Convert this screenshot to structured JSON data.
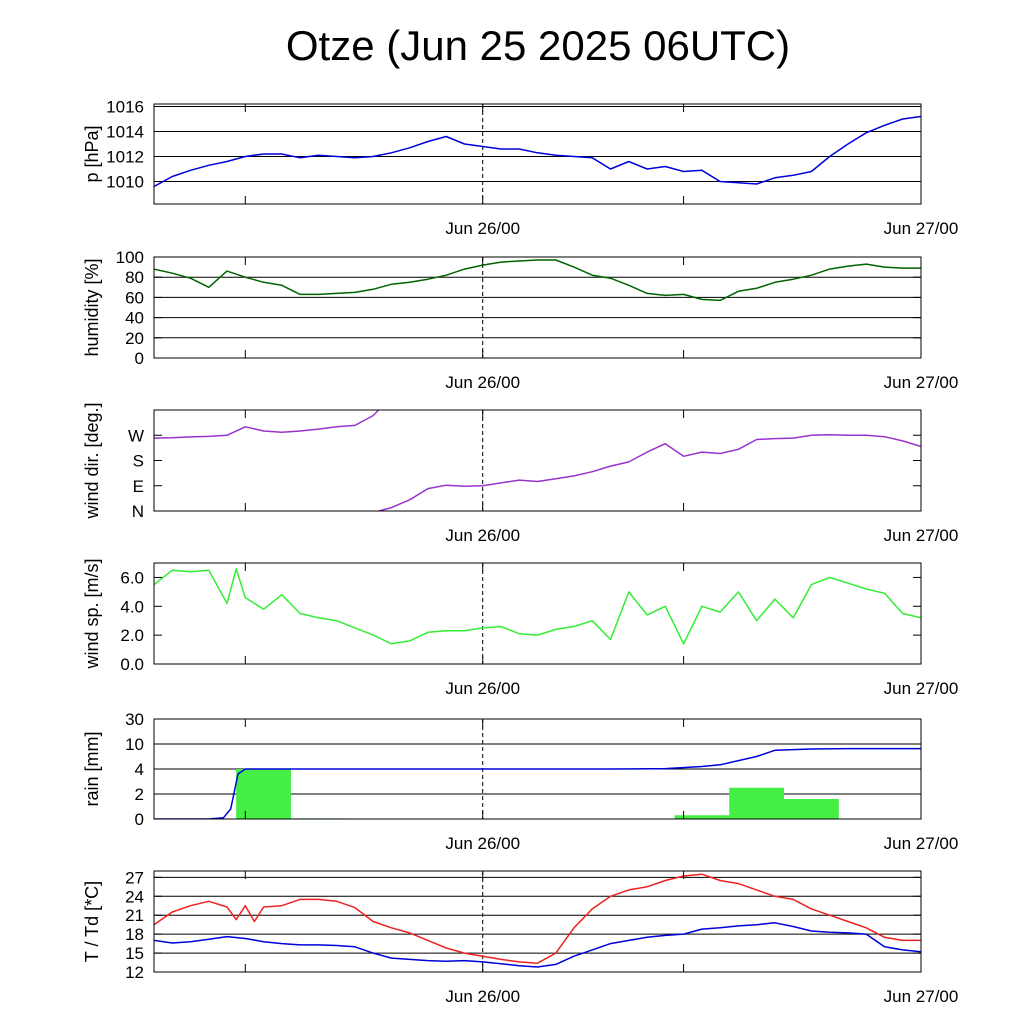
{
  "title": "Otze (Jun 25 2025 06UTC)",
  "time_axis": {
    "start": "Jun 25 06:00",
    "end": "Jun 27 00:00",
    "tick_labels": [
      "Jun 26/00",
      "Jun 27/00"
    ],
    "marked_line": "Jun 26/00"
  },
  "chart_data": [
    {
      "type": "line",
      "ylabel": "p [hPa]",
      "ylim": [
        1008.2,
        1016.2
      ],
      "yticks": [
        1010,
        1012,
        1014,
        1016
      ],
      "grid": true,
      "series": [
        {
          "color": "#0000dd",
          "x": [
            0,
            1,
            2,
            3,
            4,
            5,
            6,
            7,
            8,
            9,
            10,
            11,
            12,
            13,
            14,
            15,
            16,
            17,
            18,
            19,
            20,
            21,
            22,
            23,
            24,
            25,
            26,
            27,
            28,
            29,
            30,
            31,
            32,
            33,
            34,
            35,
            36,
            37,
            38,
            39,
            40,
            41,
            42
          ],
          "y": [
            1009.6,
            1010.4,
            1010.9,
            1011.3,
            1011.6,
            1012.0,
            1012.2,
            1012.2,
            1011.9,
            1012.1,
            1012.0,
            1011.9,
            1012.0,
            1012.3,
            1012.7,
            1013.2,
            1013.6,
            1013.0,
            1012.8,
            1012.6,
            1012.6,
            1012.3,
            1012.1,
            1012.0,
            1011.9,
            1011.0,
            1011.6,
            1011.0,
            1011.2,
            1010.8,
            1010.9,
            1010.0,
            1009.9,
            1009.8,
            1010.3,
            1010.5,
            1010.8,
            1012.0,
            1013.0,
            1013.9,
            1014.5,
            1015.0,
            1015.2
          ]
        }
      ]
    },
    {
      "type": "line",
      "ylabel": "humidity [%]",
      "ylim": [
        0,
        100
      ],
      "yticks": [
        0,
        20,
        40,
        60,
        80,
        100
      ],
      "grid": true,
      "series": [
        {
          "color": "#006400",
          "x": [
            0,
            1,
            2,
            3,
            4,
            5,
            6,
            7,
            8,
            9,
            10,
            11,
            12,
            13,
            14,
            15,
            16,
            17,
            18,
            19,
            20,
            21,
            22,
            23,
            24,
            25,
            26,
            27,
            28,
            29,
            30,
            31,
            32,
            33,
            34,
            35,
            36,
            37,
            38,
            39,
            40,
            41,
            42
          ],
          "y": [
            88,
            84,
            79,
            70,
            86,
            80,
            75,
            72,
            63,
            63,
            64,
            65,
            68,
            73,
            75,
            78,
            82,
            88,
            92,
            95,
            96,
            97,
            97,
            90,
            82,
            79,
            72,
            64,
            62,
            63,
            58,
            57,
            66,
            69,
            75,
            78,
            82,
            88,
            91,
            93,
            90,
            89,
            89
          ]
        }
      ]
    },
    {
      "type": "line",
      "ylabel": "wind dir. [deg.]",
      "ylim": [
        0,
        360
      ],
      "yticks": [
        0,
        90,
        180,
        270
      ],
      "yticklabels": [
        "N",
        "E",
        "S",
        "W"
      ],
      "grid": false,
      "series": [
        {
          "color": "#9933cc",
          "x": [
            0,
            1,
            2,
            3,
            4,
            5,
            6,
            7,
            8,
            9,
            10,
            11,
            12,
            12.3
          ],
          "y": [
            260,
            261,
            264,
            266,
            270,
            300,
            285,
            281,
            285,
            292,
            300,
            305,
            340,
            360
          ]
        },
        {
          "color": "#9933cc",
          "x": [
            12.3,
            13,
            14,
            15,
            16,
            17,
            18,
            19,
            20,
            21,
            22,
            23,
            24,
            25,
            26,
            27,
            28,
            29,
            30,
            31,
            32,
            33,
            34,
            35,
            36,
            37,
            38,
            39,
            40,
            41,
            42
          ],
          "y": [
            0,
            12,
            40,
            80,
            92,
            88,
            90,
            100,
            110,
            105,
            115,
            125,
            140,
            160,
            175,
            210,
            240,
            195,
            210,
            205,
            220,
            255,
            258,
            260,
            270,
            272,
            270,
            270,
            265,
            250,
            230
          ]
        }
      ]
    },
    {
      "type": "line",
      "ylabel": "wind sp. [m/s]",
      "ylim": [
        0,
        7
      ],
      "yticks": [
        0,
        2,
        4,
        6
      ],
      "yticklabels": [
        "0.0",
        "2.0",
        "4.0",
        "6.0"
      ],
      "grid": false,
      "series": [
        {
          "color": "#33ee33",
          "x": [
            0,
            1,
            2,
            3,
            4,
            4.5,
            5,
            6,
            7,
            8,
            9,
            10,
            11,
            12,
            13,
            14,
            15,
            16,
            17,
            18,
            19,
            20,
            21,
            22,
            23,
            24,
            25,
            26,
            27,
            28,
            29,
            30,
            31,
            32,
            33,
            34,
            35,
            36,
            37,
            38,
            39,
            40,
            41,
            42
          ],
          "y": [
            5.5,
            6.5,
            6.4,
            6.5,
            4.2,
            6.6,
            4.6,
            3.8,
            4.8,
            3.5,
            3.2,
            3.0,
            2.5,
            2.0,
            1.4,
            1.6,
            2.2,
            2.3,
            2.3,
            2.5,
            2.6,
            2.1,
            2.0,
            2.4,
            2.6,
            3.0,
            1.7,
            5.0,
            3.4,
            4.0,
            1.4,
            4.0,
            3.6,
            5.0,
            3.0,
            4.5,
            3.2,
            5.5,
            6.0,
            5.6,
            5.2,
            4.9,
            3.5,
            3.2
          ]
        }
      ]
    },
    {
      "type": "bar",
      "ylabel": "rain [mm]",
      "ylim": [
        0,
        30
      ],
      "yticks": [
        0,
        2,
        4,
        10,
        30
      ],
      "grid": true,
      "bars": {
        "color": "#44ee44",
        "x_start": [
          4.5,
          7.5,
          28.5,
          31.5,
          34.5
        ],
        "x_end": [
          7.5,
          10.5,
          31.5,
          34.5,
          37.5
        ],
        "values": [
          4.0,
          0.05,
          0.3,
          2.5,
          1.6
        ]
      },
      "series": [
        {
          "color": "#0000dd",
          "x": [
            0,
            3,
            3.8,
            4.2,
            4.6,
            5,
            10,
            20,
            25,
            28,
            30,
            31,
            33,
            34,
            36,
            38,
            42
          ],
          "y": [
            0,
            0,
            0.1,
            0.8,
            3.6,
            4.0,
            4.0,
            4.0,
            4.0,
            4.1,
            4.6,
            5.0,
            7.0,
            8.5,
            8.8,
            8.9,
            8.9
          ]
        }
      ]
    },
    {
      "type": "line",
      "ylabel": "T / Td [*C]",
      "ylim": [
        12,
        28
      ],
      "yticks": [
        12,
        15,
        18,
        21,
        24,
        27
      ],
      "grid": true,
      "series": [
        {
          "color": "#ee2222",
          "x": [
            0,
            1,
            2,
            3,
            4,
            4.5,
            5,
            5.5,
            6,
            7,
            8,
            9,
            10,
            11,
            12,
            13,
            14,
            15,
            16,
            17,
            18,
            19,
            20,
            21,
            22,
            23,
            24,
            25,
            26,
            27,
            28,
            29,
            30,
            31,
            32,
            33,
            34,
            35,
            36,
            37,
            38,
            39,
            40,
            41,
            42
          ],
          "y": [
            19.5,
            21.5,
            22.5,
            23.2,
            22.3,
            20.3,
            22.5,
            20.0,
            22.3,
            22.5,
            23.5,
            23.5,
            23.2,
            22.2,
            20.0,
            19.0,
            18.2,
            17.0,
            15.8,
            15.0,
            14.5,
            14.0,
            13.6,
            13.4,
            15.0,
            19.0,
            22.0,
            24.0,
            25.0,
            25.5,
            26.5,
            27.2,
            27.5,
            26.5,
            26.0,
            25.0,
            24.0,
            23.5,
            22.0,
            21.0,
            20.0,
            19.0,
            17.5,
            17.0,
            17.0
          ]
        },
        {
          "color": "#0000dd",
          "x": [
            0,
            1,
            2,
            3,
            4,
            5,
            6,
            7,
            8,
            9,
            10,
            11,
            12,
            13,
            14,
            15,
            16,
            17,
            18,
            19,
            20,
            21,
            22,
            23,
            24,
            25,
            26,
            27,
            28,
            29,
            30,
            31,
            32,
            33,
            34,
            35,
            36,
            37,
            38,
            39,
            40,
            41,
            42
          ],
          "y": [
            17.0,
            16.6,
            16.8,
            17.2,
            17.6,
            17.3,
            16.8,
            16.5,
            16.3,
            16.3,
            16.2,
            16.0,
            15.0,
            14.2,
            14.0,
            13.8,
            13.7,
            13.8,
            13.6,
            13.3,
            13.0,
            12.8,
            13.2,
            14.5,
            15.5,
            16.5,
            17.0,
            17.5,
            17.8,
            18.0,
            18.8,
            19.0,
            19.3,
            19.5,
            19.8,
            19.2,
            18.5,
            18.3,
            18.2,
            18.0,
            16.0,
            15.5,
            15.2
          ]
        }
      ]
    }
  ]
}
